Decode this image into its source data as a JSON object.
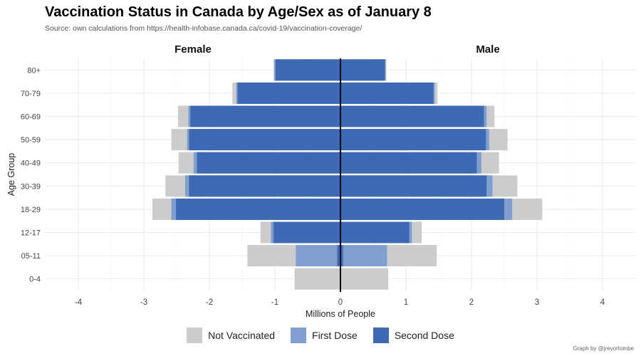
{
  "title": "Vaccination Status in Canada by Age/Sex as of January 8",
  "subtitle": "Source: own calculations from https://health-infobase.canada.ca/covid-19/vaccination-coverage/",
  "caption": "Graph by @jrevortombe",
  "colors": {
    "not_vaccinated": "#cccccc",
    "first_dose": "#7f9fd1",
    "second_dose": "#3f6ab3"
  },
  "chart_data": {
    "type": "bar",
    "orientation": "horizontal-pyramid",
    "xlabel": "Millions of People",
    "ylabel": "Age Group",
    "xlim": [
      -4.2,
      4.5
    ],
    "xticks": [
      -4,
      -3,
      -2,
      -1,
      0,
      1,
      2,
      3,
      4
    ],
    "grid": true,
    "legend_position": "bottom",
    "panels": [
      "Female",
      "Male"
    ],
    "categories": [
      "0-4",
      "05-11",
      "12-17",
      "18-29",
      "30-39",
      "40-49",
      "50-59",
      "60-69",
      "70-79",
      "80+"
    ],
    "series": [
      {
        "name": "Not Vaccinated",
        "female": [
          -0.7,
          -1.42,
          -1.22,
          -2.87,
          -2.67,
          -2.47,
          -2.58,
          -2.48,
          -1.65,
          -1.02
        ],
        "male": [
          0.73,
          1.47,
          1.24,
          3.08,
          2.7,
          2.42,
          2.55,
          2.35,
          1.48,
          0.7
        ]
      },
      {
        "name": "First Dose",
        "female": [
          0,
          -0.68,
          -1.06,
          -2.58,
          -2.37,
          -2.24,
          -2.34,
          -2.32,
          -1.59,
          -1.01
        ],
        "male": [
          0,
          0.71,
          1.09,
          2.62,
          2.32,
          2.15,
          2.27,
          2.23,
          1.44,
          0.69
        ]
      },
      {
        "name": "Second Dose",
        "female": [
          0,
          -0.05,
          -1.02,
          -2.51,
          -2.31,
          -2.19,
          -2.31,
          -2.29,
          -1.57,
          -0.99
        ],
        "male": [
          0,
          0.04,
          1.05,
          2.5,
          2.23,
          2.08,
          2.22,
          2.19,
          1.42,
          0.68
        ]
      }
    ]
  }
}
